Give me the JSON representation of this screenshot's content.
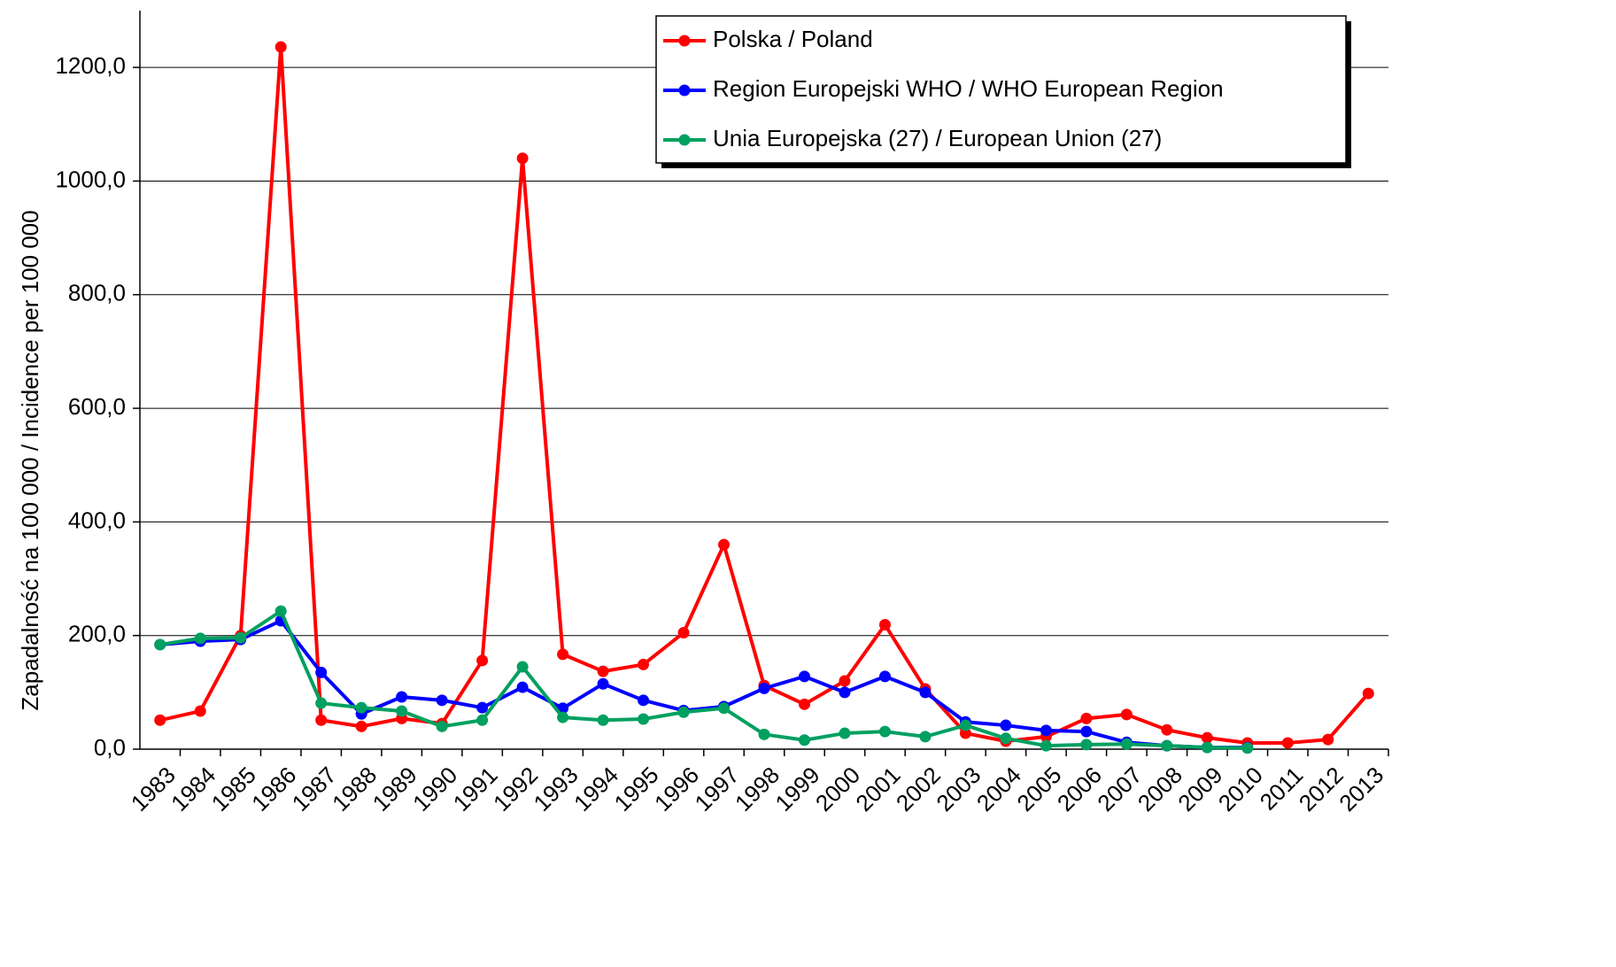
{
  "chart_data": {
    "type": "line",
    "y_label": "Zapadalność na 100 000  / Incidence per 100 000",
    "categories": [
      "1983",
      "1984",
      "1985",
      "1986",
      "1987",
      "1988",
      "1989",
      "1990",
      "1991",
      "1992",
      "1993",
      "1994",
      "1995",
      "1996",
      "1997",
      "1998",
      "1999",
      "2000",
      "2001",
      "2002",
      "2003",
      "2004",
      "2005",
      "2006",
      "2007",
      "2008",
      "2009",
      "2010",
      "2011",
      "2012",
      "2013"
    ],
    "series": [
      {
        "name": "Polska / Poland",
        "color": "#ff0000",
        "values": [
          51,
          67,
          200,
          1236,
          51,
          40,
          54,
          45,
          156,
          1040,
          167,
          137,
          149,
          205,
          360,
          112,
          79,
          120,
          219,
          106,
          28,
          14,
          22,
          54,
          61,
          34,
          20,
          11,
          11,
          17,
          98
        ]
      },
      {
        "name": "Region Europejski WHO / WHO European Region",
        "color": "#0000ff",
        "values": [
          184,
          190,
          193,
          226,
          135,
          62,
          92,
          86,
          73,
          109,
          72,
          115,
          86,
          68,
          75,
          107,
          128,
          100,
          128,
          100,
          48,
          42,
          33,
          31,
          12,
          6,
          3,
          3,
          null,
          null,
          null
        ]
      },
      {
        "name": "Unia Europejska (27) / European Union (27)",
        "color": "#00a060",
        "values": [
          184,
          195,
          196,
          243,
          81,
          73,
          67,
          40,
          51,
          145,
          56,
          51,
          53,
          65,
          72,
          26,
          16,
          28,
          31,
          22,
          42,
          19,
          6,
          8,
          9,
          6,
          3,
          2,
          null,
          null,
          null
        ]
      }
    ],
    "ylim": [
      0,
      1300
    ],
    "yticks": [
      {
        "value": 0,
        "label": "0,0"
      },
      {
        "value": 200,
        "label": "200,0"
      },
      {
        "value": 400,
        "label": "400,0"
      },
      {
        "value": 600,
        "label": "600,0"
      },
      {
        "value": 800,
        "label": "800,0"
      },
      {
        "value": 1000,
        "label": "1000,0"
      },
      {
        "value": 1200,
        "label": "1200,0"
      }
    ],
    "grid": true,
    "legend": "upper right"
  }
}
